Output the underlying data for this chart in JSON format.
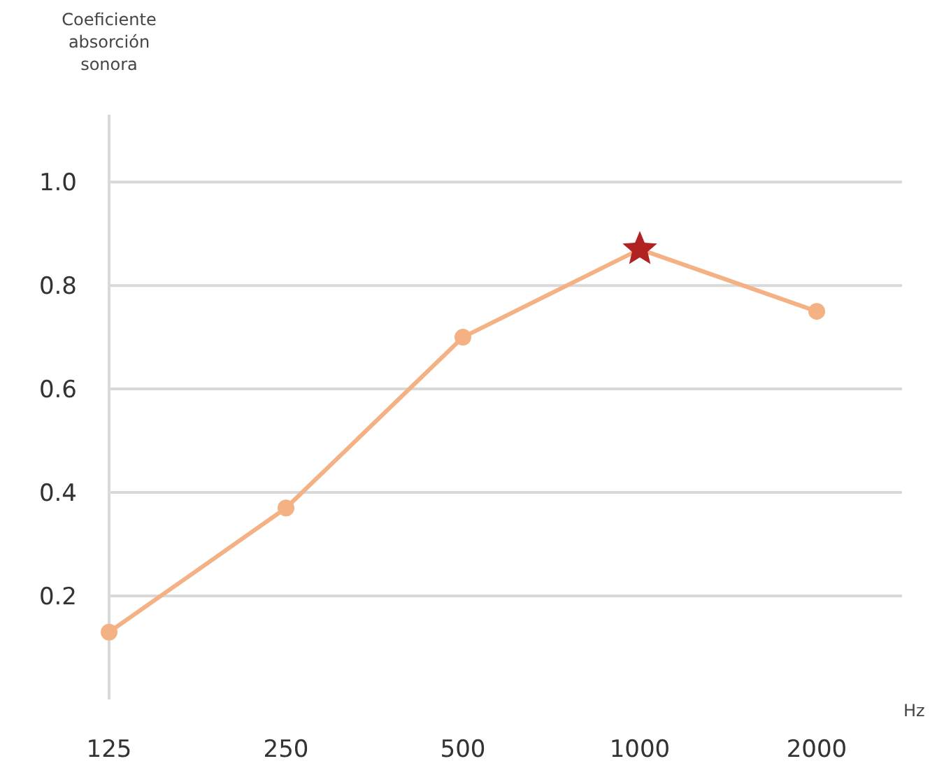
{
  "chart_data": {
    "type": "line",
    "ylabel": "Coeficiente absorción sonora",
    "xlabel": "Hz",
    "categories": [
      "125",
      "250",
      "500",
      "1000",
      "2000"
    ],
    "series": [
      {
        "color": "#f4b183",
        "marker": "circle",
        "values": [
          0.13,
          0.37,
          0.7,
          0.87,
          0.75
        ]
      },
      {
        "type": "scatter",
        "color": "#b22222",
        "marker": "star",
        "values": [
          null,
          null,
          null,
          0.87,
          null
        ]
      }
    ],
    "ylim": [
      0,
      1.13
    ],
    "yticks": [
      {
        "value": 0.2,
        "label": "0.2"
      },
      {
        "value": 0.4,
        "label": "0.4"
      },
      {
        "value": 0.6,
        "label": "0.6"
      },
      {
        "value": 0.8,
        "label": "0.8"
      },
      {
        "value": 1.0,
        "label": "1.0"
      }
    ],
    "grid": "y",
    "line_style": "solid"
  }
}
